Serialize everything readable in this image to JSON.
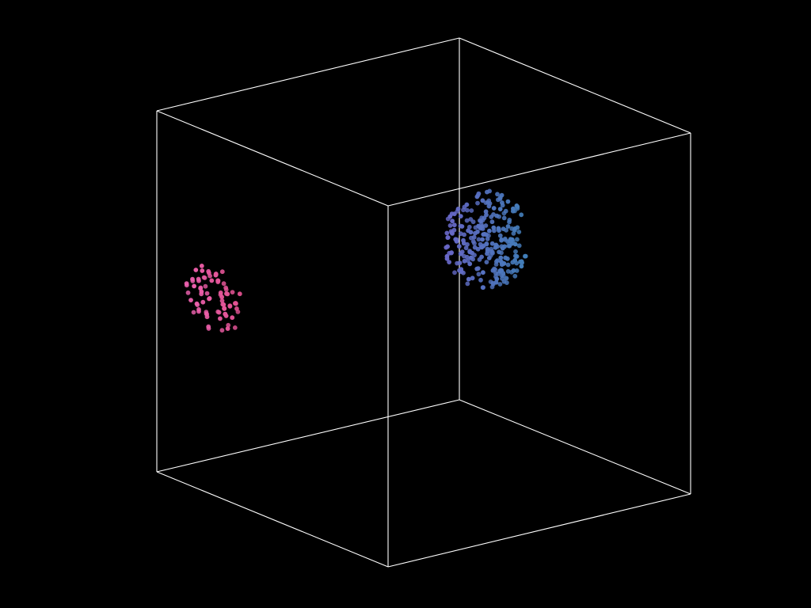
{
  "scene": {
    "background_color": "#000000",
    "bounding_box_color": "#ffffff",
    "clusters": [
      {
        "name": "cluster-pink",
        "point_count": 80,
        "color_from": "#f064b4",
        "color_to": "#e0508e"
      },
      {
        "name": "cluster-blue",
        "point_count": 260,
        "color_from": "#6a66c8",
        "color_to": "#3f7fb8"
      }
    ]
  }
}
